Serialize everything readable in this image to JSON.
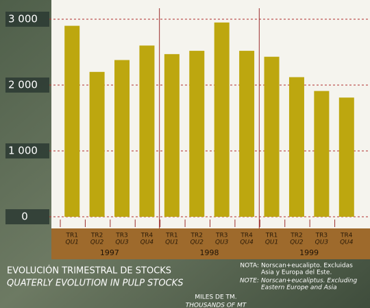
{
  "chart_data": {
    "type": "bar",
    "title": "EVOLUCIÓN TRIMESTRAL DE STOCKS",
    "subtitle": "QUATERLY EVOLUTION IN PULP STOCKS",
    "categories": [
      "TR1",
      "TR2",
      "TR3",
      "TR4",
      "TR1",
      "TR2",
      "TR3",
      "TR4",
      "TR1",
      "TR2",
      "TR3",
      "TR4"
    ],
    "categories_en": [
      "QU1",
      "QU2",
      "QU3",
      "QU4",
      "QU1",
      "QU2",
      "QU3",
      "QU4",
      "QU1",
      "QU2",
      "QU3",
      "QU4"
    ],
    "groups": [
      "1997",
      "1998",
      "1999"
    ],
    "values": [
      2900,
      2200,
      2380,
      2600,
      2470,
      2520,
      2950,
      2520,
      2430,
      2120,
      1910,
      1810
    ],
    "color": "#bda70f",
    "ylim": [
      0,
      3000
    ],
    "yticks": [
      0,
      {
        "value": 1000,
        "label": "1 000"
      },
      {
        "value": 2000,
        "label": "2 000"
      },
      {
        "value": 3000,
        "label": "3 000"
      }
    ],
    "grid": true,
    "unit_es": "MILES DE TM.",
    "unit_en": "THOUSANDS OF MT",
    "note_es": {
      "label": "NOTA:",
      "lines": [
        "Norscan+eucalipto. Excluidas",
        "Asia y Europa del Este."
      ]
    },
    "note_en": {
      "label": "NOTE:",
      "lines": [
        "Norscan+eucaliptus. Excluding",
        "Eastern Europe and Asia"
      ]
    }
  }
}
